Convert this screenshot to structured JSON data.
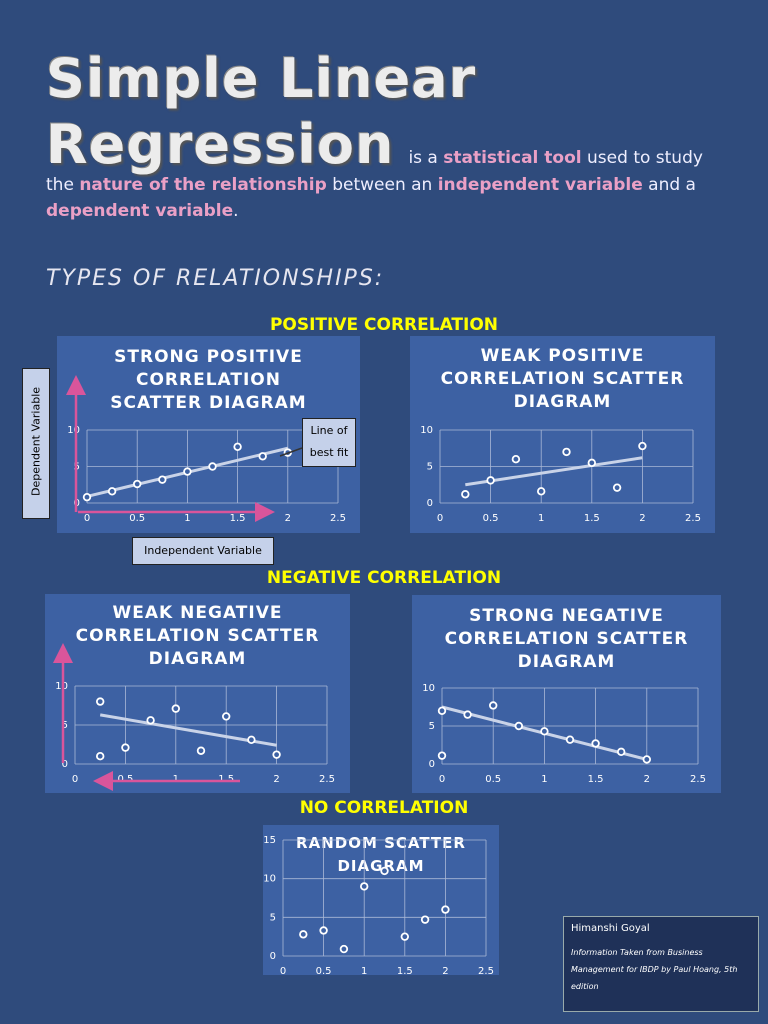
{
  "header": {
    "title_line1": "Simple Linear",
    "title_line2": "Regression"
  },
  "intro": [
    {
      "text": "is a ",
      "highlight": false
    },
    {
      "text": "statistical tool",
      "highlight": true
    },
    {
      "text": " used to study the ",
      "highlight": false
    },
    {
      "text": "nature of the relationship",
      "highlight": true
    },
    {
      "text": " between an ",
      "highlight": false
    },
    {
      "text": "independent variable",
      "highlight": true
    },
    {
      "text": " and a ",
      "highlight": false
    },
    {
      "text": "dependent variable",
      "highlight": true
    },
    {
      "text": ".",
      "highlight": false
    }
  ],
  "subheading": "TYPES OF RELATIONSHIPS:",
  "sections": [
    "POSITIVE CORRELATION",
    "NEGATIVE CORRELATION",
    "NO CORRELATION"
  ],
  "annotations": {
    "dependent": "Dependent Variable",
    "independent": "Independent Variable",
    "best_fit": "Line of best fit"
  },
  "footer": {
    "author": "Himanshi Goyal",
    "source": "Information Taken from Business Management for IBDP by Paul Hoang, 5th edition"
  },
  "chart_data": [
    {
      "type": "scatter",
      "title": "STRONG POSITIVE CORRELATION SCATTER DIAGRAM",
      "x": [
        0,
        0.25,
        0.5,
        0.75,
        1,
        1.25,
        1.5,
        1.75,
        2
      ],
      "y": [
        0.8,
        1.6,
        2.6,
        3.2,
        4.3,
        5,
        7.7,
        6.4,
        6.9
      ],
      "trendline": {
        "x": [
          0,
          2
        ],
        "y": [
          0.9,
          7.5
        ]
      },
      "xlim": [
        0,
        2.5
      ],
      "xticks": [
        0,
        0.5,
        1,
        1.5,
        2,
        2.5
      ],
      "ylim": [
        0,
        10
      ],
      "yticks": [
        0,
        5,
        10
      ],
      "grid": true,
      "color": "#ffffff",
      "trend_color": "#c9d3e8"
    },
    {
      "type": "scatter",
      "title": "WEAK POSITIVE CORRELATION SCATTER DIAGRAM",
      "x": [
        0.25,
        0.5,
        0.75,
        1,
        1.25,
        1.5,
        1.75,
        2
      ],
      "y": [
        1.2,
        3.1,
        6,
        1.6,
        7,
        5.5,
        2.1,
        7.8
      ],
      "trendline": {
        "x": [
          0.25,
          2
        ],
        "y": [
          2.5,
          6.2
        ]
      },
      "xlim": [
        0,
        2.5
      ],
      "xticks": [
        0,
        0.5,
        1,
        1.5,
        2,
        2.5
      ],
      "ylim": [
        0,
        10
      ],
      "yticks": [
        0,
        5,
        10
      ],
      "grid": true,
      "color": "#ffffff",
      "trend_color": "#c9d3e8"
    },
    {
      "type": "scatter",
      "title": "WEAK NEGATIVE CORRELATION SCATTER DIAGRAM",
      "x": [
        0.25,
        0.25,
        0.5,
        0.75,
        1,
        1.25,
        1.5,
        1.75,
        2
      ],
      "y": [
        1,
        8,
        2.1,
        5.6,
        7.1,
        1.7,
        6.1,
        3.1,
        1.2
      ],
      "trendline": {
        "x": [
          0.25,
          2
        ],
        "y": [
          6.3,
          2.4
        ]
      },
      "xlim": [
        0,
        2.5
      ],
      "xticks": [
        0,
        0.5,
        1,
        1.5,
        2,
        2.5
      ],
      "ylim": [
        0,
        10
      ],
      "yticks": [
        0,
        5,
        10
      ],
      "grid": true,
      "color": "#ffffff",
      "trend_color": "#c9d3e8"
    },
    {
      "type": "scatter",
      "title": "STRONG NEGATIVE CORRELATION SCATTER DIAGRAM",
      "x": [
        0,
        0,
        0.25,
        0.5,
        0.75,
        1,
        1.25,
        1.5,
        1.75,
        2
      ],
      "y": [
        1.1,
        7,
        6.5,
        7.7,
        5,
        4.3,
        3.2,
        2.7,
        1.6,
        0.6
      ],
      "trendline": {
        "x": [
          0,
          2
        ],
        "y": [
          7.5,
          0.6
        ]
      },
      "xlim": [
        0,
        2.5
      ],
      "xticks": [
        0,
        0.5,
        1,
        1.5,
        2,
        2.5
      ],
      "ylim": [
        0,
        10
      ],
      "yticks": [
        0,
        5,
        10
      ],
      "grid": true,
      "color": "#ffffff",
      "trend_color": "#c9d3e8"
    },
    {
      "type": "scatter",
      "title": "RANDOM SCATTER DIAGRAM",
      "x": [
        0.25,
        0.5,
        0.75,
        1,
        1.25,
        1.5,
        1.75,
        2
      ],
      "y": [
        2.8,
        3.3,
        0.9,
        9,
        11,
        2.5,
        4.7,
        6
      ],
      "xlim": [
        0,
        2.5
      ],
      "xticks": [
        0,
        0.5,
        1,
        1.5,
        2,
        2.5
      ],
      "ylim": [
        0,
        15
      ],
      "yticks": [
        0,
        5,
        10,
        15
      ],
      "grid": true,
      "color": "#ffffff"
    }
  ]
}
